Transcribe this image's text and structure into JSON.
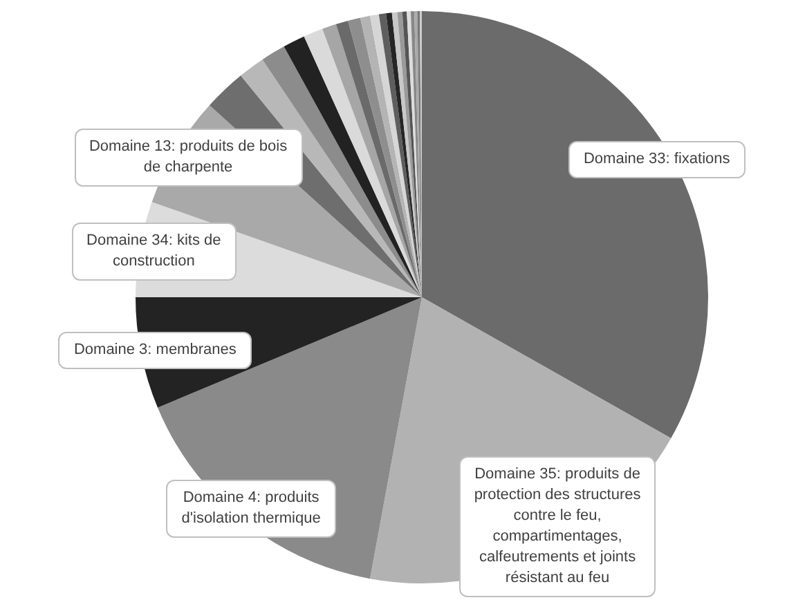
{
  "chart_data": {
    "type": "pie",
    "categories": [
      "Domaine 33: fixations",
      "Domaine 35: produits de protection des structures contre le feu, compartimentages, calfeutrements et joints résistant au feu",
      "Domaine 4: produits d'isolation thermique",
      "Domaine 3: membranes",
      "Domaine 34: kits de construction",
      "Domaine 13: produits de bois de charpente",
      null,
      null,
      null,
      null,
      null,
      null,
      null,
      null,
      null,
      null,
      null,
      null,
      null,
      null,
      null,
      null,
      null,
      null,
      null,
      null
    ],
    "values": [
      33.2,
      19.7,
      15.8,
      6.3,
      5.4,
      6.3,
      2.4,
      1.5,
      1.4,
      1.25,
      1.1,
      0.8,
      0.7,
      0.7,
      0.55,
      0.5,
      0.4,
      0.33,
      0.3,
      0.28,
      0.25,
      0.22,
      0.2,
      0.17,
      0.14,
      0.11
    ],
    "colors": [
      "#6b6b6b",
      "#b2b2b2",
      "#8a8a8a",
      "#232323",
      "#dcdcdc",
      "#a9a9a9",
      "#6e6e6e",
      "#b8b8b8",
      "#8c8c8c",
      "#222222",
      "#dadada",
      "#a6a6a6",
      "#6a6a6a",
      "#8e8e8e",
      "#b4b4b4",
      "#d6d6d6",
      "#5e5e5e",
      "#262626",
      "#c8c8c8",
      "#9a9a9a",
      "#555555",
      "#dddddd",
      "#888888",
      "#aaaaaa",
      "#777777",
      "#cccccc"
    ],
    "legend": false
  }
}
